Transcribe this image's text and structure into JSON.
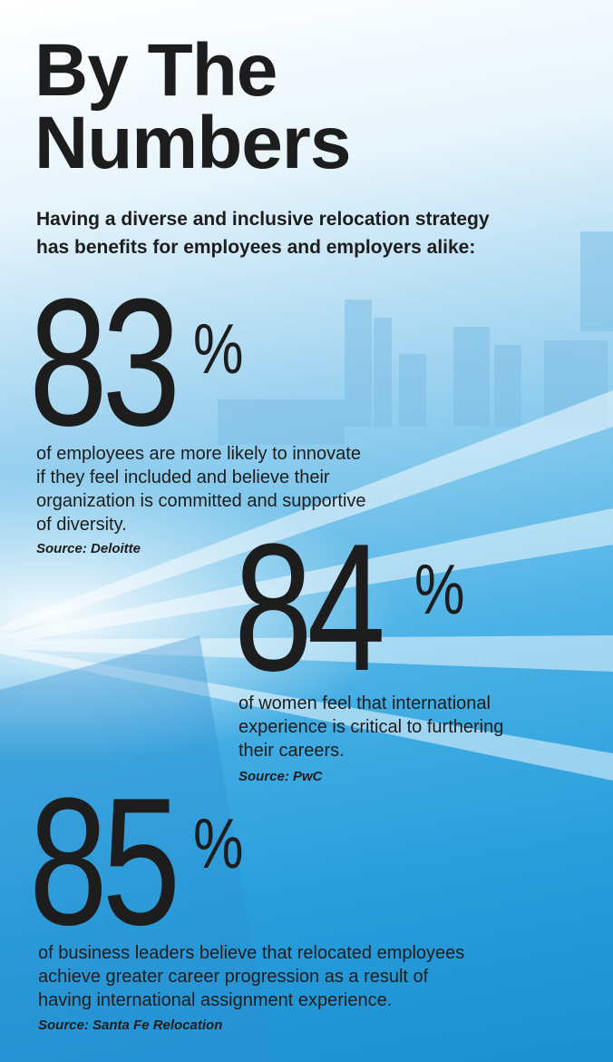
{
  "header": {
    "title_lines": [
      "By The",
      "Numbers"
    ],
    "subtitle_lines": [
      "Having a diverse and inclusive relocation strategy",
      "has benefits for employees and employers alike:"
    ]
  },
  "stats": [
    {
      "number": "83",
      "unit": "%",
      "lines": [
        "of employees are more likely to innovate",
        "if they feel included and believe their",
        "organization is committed and supportive",
        "of diversity."
      ],
      "source": "Source: Deloitte"
    },
    {
      "number": "84",
      "unit": "%",
      "lines": [
        "of women feel that international",
        "experience is critical to furthering",
        "their careers."
      ],
      "source": "Source: PwC"
    },
    {
      "number": "85",
      "unit": "%",
      "lines": [
        "of business leaders believe that relocated employees",
        "achieve greater career progression as a result of",
        "having international assignment experience."
      ],
      "source": "Source: Santa Fe Relocation"
    }
  ]
}
